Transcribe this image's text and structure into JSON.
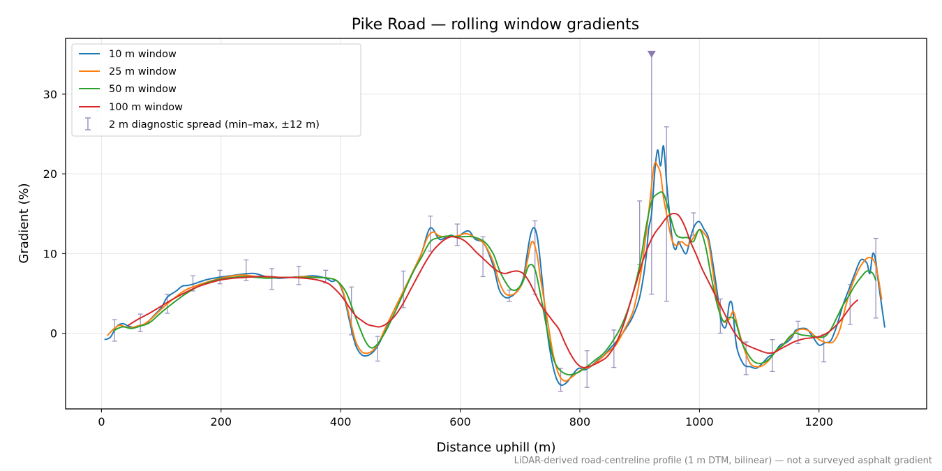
{
  "chart_data": {
    "type": "line",
    "title": "Pike Road — rolling window gradients",
    "xlabel": "Distance uphill (m)",
    "ylabel": "Gradient (%)",
    "xlim": [
      -60,
      1380
    ],
    "ylim": [
      -9.5,
      37
    ],
    "xticks": [
      0,
      200,
      400,
      600,
      800,
      1000,
      1200
    ],
    "yticks": [
      0,
      10,
      20,
      30
    ],
    "grid": true,
    "legend_position": "upper-left",
    "footnote": "LiDAR-derived road-centreline profile (1 m DTM, bilinear) — not a surveyed asphalt gradient",
    "colors": {
      "10 m window": "#1f77b4",
      "25 m window": "#ff7f0e",
      "50 m window": "#2ca02c",
      "100 m window": "#d62728",
      "errorbars": "#9a93bd",
      "marker": "#8b7bb0",
      "grid": "#e6e6e6"
    },
    "series": [
      {
        "name": "10 m window",
        "x": [
          5,
          15,
          25,
          35,
          45,
          55,
          65,
          75,
          85,
          100,
          110,
          125,
          135,
          145,
          155,
          175,
          195,
          215,
          235,
          255,
          275,
          295,
          315,
          335,
          355,
          375,
          385,
          395,
          405,
          415,
          425,
          435,
          445,
          455,
          465,
          475,
          490,
          505,
          520,
          535,
          545,
          550,
          555,
          565,
          575,
          585,
          595,
          605,
          615,
          625,
          640,
          655,
          665,
          675,
          685,
          695,
          705,
          712,
          718,
          724,
          730,
          738,
          745,
          752,
          760,
          768,
          778,
          788,
          798,
          808,
          818,
          828,
          840,
          852,
          864,
          876,
          888,
          900,
          910,
          915,
          920,
          925,
          930,
          935,
          940,
          945,
          950,
          955,
          960,
          965,
          970,
          978,
          985,
          992,
          1000,
          1008,
          1015,
          1022,
          1030,
          1035,
          1040,
          1045,
          1050,
          1055,
          1060,
          1065,
          1075,
          1085,
          1095,
          1105,
          1115,
          1125,
          1135,
          1145,
          1155,
          1160,
          1165,
          1170,
          1180,
          1190,
          1200,
          1210,
          1220,
          1230,
          1240,
          1250,
          1260,
          1270,
          1280,
          1285,
          1290,
          1295,
          1300,
          1310
        ],
        "y": [
          -0.8,
          -0.5,
          0.8,
          1.2,
          0.9,
          0.7,
          0.9,
          1.2,
          2.0,
          3.2,
          4.5,
          5.3,
          5.9,
          6.0,
          6.2,
          6.7,
          7.0,
          7.2,
          7.4,
          7.5,
          7.1,
          6.9,
          7.0,
          7.1,
          7.2,
          6.9,
          6.5,
          6.5,
          4.8,
          1.5,
          -1.5,
          -2.7,
          -2.8,
          -2.3,
          -1.2,
          0.5,
          3.0,
          5.2,
          7.5,
          10.0,
          12.5,
          13.2,
          13.0,
          11.8,
          12.0,
          12.3,
          12.0,
          12.6,
          12.8,
          11.8,
          11.2,
          8.5,
          5.5,
          4.5,
          4.6,
          5.3,
          6.8,
          10.0,
          12.5,
          13.2,
          11.5,
          6.0,
          0.5,
          -3.0,
          -5.5,
          -6.5,
          -6.2,
          -5.2,
          -4.4,
          -4.6,
          -4.2,
          -3.5,
          -2.8,
          -1.8,
          -0.8,
          0.5,
          2.0,
          4.5,
          9.0,
          13.0,
          15.0,
          20.0,
          23.0,
          21.0,
          23.5,
          19.0,
          15.0,
          11.5,
          10.5,
          11.5,
          10.8,
          10.0,
          12.0,
          13.5,
          14.0,
          13.0,
          12.0,
          9.0,
          5.0,
          2.0,
          0.8,
          1.0,
          3.7,
          3.5,
          -0.5,
          -2.5,
          -4.0,
          -4.2,
          -4.4,
          -3.8,
          -3.0,
          -2.5,
          -1.5,
          -1.2,
          -0.5,
          0.3,
          0.5,
          0.6,
          0.5,
          -0.5,
          -1.5,
          -1.2,
          -0.9,
          1.0,
          3.5,
          5.5,
          7.5,
          9.2,
          8.8,
          7.5,
          10.0,
          9.0,
          6.0,
          0.7
        ]
      },
      {
        "name": "25 m window",
        "x": [
          10,
          20,
          30,
          40,
          50,
          60,
          70,
          80,
          100,
          120,
          140,
          160,
          180,
          200,
          220,
          240,
          260,
          280,
          300,
          320,
          340,
          360,
          380,
          395,
          405,
          415,
          425,
          435,
          445,
          455,
          465,
          475,
          490,
          505,
          520,
          535,
          545,
          555,
          565,
          580,
          595,
          610,
          625,
          640,
          655,
          665,
          675,
          685,
          695,
          705,
          712,
          720,
          728,
          735,
          745,
          755,
          765,
          775,
          785,
          795,
          805,
          815,
          830,
          845,
          860,
          875,
          890,
          902,
          910,
          915,
          920,
          925,
          930,
          935,
          940,
          945,
          950,
          955,
          962,
          970,
          980,
          990,
          1000,
          1008,
          1015,
          1022,
          1030,
          1040,
          1050,
          1057,
          1065,
          1075,
          1085,
          1095,
          1105,
          1115,
          1125,
          1135,
          1145,
          1155,
          1165,
          1175,
          1185,
          1195,
          1205,
          1215,
          1225,
          1235,
          1245,
          1255,
          1265,
          1275,
          1285,
          1295,
          1305
        ],
        "y": [
          -0.3,
          0.5,
          1.0,
          0.8,
          0.7,
          0.9,
          1.1,
          1.6,
          3.0,
          4.3,
          5.4,
          6.0,
          6.5,
          6.9,
          7.2,
          7.3,
          7.1,
          7.0,
          7.0,
          7.0,
          7.1,
          7.0,
          6.9,
          6.5,
          5.0,
          2.0,
          -1.0,
          -2.3,
          -2.5,
          -2.1,
          -1.0,
          0.7,
          3.0,
          5.3,
          7.6,
          10.0,
          12.0,
          12.7,
          12.2,
          12.1,
          12.2,
          12.5,
          12.0,
          11.2,
          9.0,
          6.5,
          5.0,
          4.8,
          5.2,
          6.5,
          9.0,
          11.5,
          10.0,
          6.5,
          2.0,
          -2.5,
          -5.2,
          -6.0,
          -5.6,
          -5.0,
          -4.5,
          -4.3,
          -3.5,
          -2.5,
          -1.5,
          0.5,
          3.0,
          7.5,
          12.0,
          15.0,
          18.5,
          21.3,
          21.0,
          20.0,
          17.0,
          15.0,
          13.0,
          11.5,
          11.0,
          11.5,
          11.0,
          12.0,
          13.0,
          12.5,
          11.5,
          8.0,
          4.0,
          1.5,
          1.8,
          2.7,
          0.5,
          -2.0,
          -3.8,
          -4.2,
          -4.1,
          -3.5,
          -2.5,
          -1.8,
          -1.0,
          -0.3,
          0.4,
          0.5,
          0.2,
          -0.5,
          -1.0,
          -1.2,
          -1.0,
          0.5,
          3.5,
          6.0,
          7.8,
          9.0,
          9.5,
          8.5,
          4.2
        ]
      },
      {
        "name": "50 m window",
        "x": [
          20,
          35,
          50,
          65,
          80,
          100,
          120,
          140,
          160,
          180,
          200,
          220,
          240,
          260,
          280,
          300,
          320,
          340,
          360,
          380,
          395,
          410,
          425,
          440,
          450,
          460,
          475,
          490,
          505,
          520,
          535,
          550,
          565,
          580,
          600,
          620,
          640,
          655,
          665,
          675,
          685,
          695,
          705,
          715,
          725,
          735,
          745,
          755,
          765,
          780,
          795,
          810,
          825,
          840,
          855,
          870,
          885,
          900,
          910,
          920,
          930,
          940,
          950,
          960,
          970,
          980,
          990,
          1000,
          1010,
          1020,
          1030,
          1040,
          1050,
          1060,
          1070,
          1080,
          1090,
          1100,
          1110,
          1120,
          1130,
          1140,
          1150,
          1160,
          1170,
          1180,
          1190,
          1200,
          1210,
          1220,
          1230,
          1240,
          1250,
          1260,
          1270,
          1280,
          1290,
          1295
        ],
        "y": [
          0.3,
          0.8,
          0.6,
          0.9,
          1.3,
          2.6,
          3.8,
          4.9,
          5.8,
          6.4,
          6.8,
          7.0,
          7.1,
          7.0,
          6.9,
          7.0,
          7.0,
          7.0,
          7.0,
          6.9,
          6.5,
          5.0,
          2.0,
          -0.8,
          -1.8,
          -1.5,
          0.2,
          2.5,
          5.0,
          7.5,
          9.5,
          11.5,
          12.0,
          12.2,
          12.1,
          12.1,
          11.5,
          10.0,
          8.0,
          6.5,
          5.5,
          5.5,
          6.5,
          8.5,
          8.0,
          4.5,
          0.5,
          -3.0,
          -4.5,
          -5.2,
          -5.0,
          -4.3,
          -3.4,
          -2.5,
          -1.0,
          1.0,
          4.0,
          8.5,
          13.0,
          16.5,
          17.5,
          17.5,
          15.0,
          12.5,
          12.0,
          12.0,
          11.5,
          13.0,
          11.0,
          7.0,
          3.5,
          1.5,
          2.0,
          1.5,
          -1.0,
          -2.5,
          -3.5,
          -3.8,
          -3.6,
          -3.0,
          -2.0,
          -1.5,
          -0.5,
          0.0,
          -0.2,
          -0.3,
          -0.4,
          -0.5,
          -0.4,
          0.5,
          2.0,
          3.5,
          4.7,
          6.0,
          7.0,
          7.8,
          7.5,
          6.6
        ]
      },
      {
        "name": "100 m window",
        "x": [
          45,
          60,
          80,
          100,
          120,
          140,
          160,
          180,
          200,
          220,
          240,
          260,
          280,
          300,
          320,
          340,
          360,
          380,
          395,
          405,
          415,
          425,
          435,
          445,
          455,
          465,
          475,
          485,
          495,
          505,
          515,
          525,
          535,
          545,
          555,
          565,
          575,
          585,
          595,
          605,
          615,
          625,
          635,
          645,
          655,
          665,
          675,
          685,
          695,
          705,
          715,
          725,
          735,
          745,
          755,
          765,
          775,
          785,
          795,
          805,
          815,
          825,
          835,
          845,
          855,
          865,
          875,
          885,
          895,
          905,
          915,
          925,
          935,
          945,
          955,
          965,
          975,
          985,
          995,
          1005,
          1015,
          1025,
          1035,
          1045,
          1055,
          1065,
          1075,
          1085,
          1095,
          1105,
          1115,
          1125,
          1135,
          1145,
          1155,
          1165,
          1175,
          1185,
          1195,
          1205,
          1215,
          1225,
          1235,
          1245,
          1255,
          1265
        ],
        "y": [
          1.0,
          1.7,
          2.5,
          3.4,
          4.3,
          5.1,
          5.8,
          6.3,
          6.7,
          6.9,
          7.0,
          7.1,
          7.1,
          7.0,
          7.0,
          6.9,
          6.7,
          6.2,
          5.2,
          4.3,
          3.2,
          2.2,
          1.6,
          1.1,
          0.9,
          0.8,
          1.1,
          1.7,
          2.6,
          3.8,
          5.2,
          6.6,
          8.0,
          9.3,
          10.4,
          11.2,
          11.8,
          12.1,
          12.0,
          11.7,
          11.1,
          10.3,
          9.6,
          8.9,
          8.2,
          7.7,
          7.5,
          7.7,
          7.8,
          7.5,
          6.5,
          5.0,
          3.5,
          2.5,
          1.5,
          0.5,
          -1.2,
          -2.7,
          -3.8,
          -4.3,
          -4.2,
          -3.9,
          -3.5,
          -3.0,
          -2.0,
          -0.5,
          1.5,
          4.0,
          6.5,
          9.0,
          11.0,
          12.5,
          13.5,
          14.5,
          15.0,
          14.8,
          13.5,
          11.5,
          9.8,
          8.0,
          6.5,
          5.0,
          3.5,
          2.0,
          0.5,
          -0.6,
          -1.3,
          -1.7,
          -2.0,
          -2.3,
          -2.5,
          -2.4,
          -2.0,
          -1.6,
          -1.2,
          -0.9,
          -0.7,
          -0.6,
          -0.5,
          -0.3,
          0.1,
          0.7,
          1.5,
          2.5,
          3.5,
          4.2
        ]
      }
    ],
    "errorbar_series": {
      "name": "2 m diagnostic spread (min–max, ±12 m)",
      "points": [
        {
          "x": 22,
          "lo": -1.0,
          "hi": 1.7
        },
        {
          "x": 65,
          "lo": 0.2,
          "hi": 2.4
        },
        {
          "x": 110,
          "lo": 2.5,
          "hi": 4.9
        },
        {
          "x": 153,
          "lo": 5.3,
          "hi": 7.2
        },
        {
          "x": 198,
          "lo": 6.2,
          "hi": 7.9
        },
        {
          "x": 242,
          "lo": 6.6,
          "hi": 9.2
        },
        {
          "x": 285,
          "lo": 5.5,
          "hi": 8.1
        },
        {
          "x": 330,
          "lo": 6.1,
          "hi": 8.4
        },
        {
          "x": 375,
          "lo": 6.3,
          "hi": 7.9
        },
        {
          "x": 418,
          "lo": -0.2,
          "hi": 5.8
        },
        {
          "x": 462,
          "lo": -3.5,
          "hi": -0.4
        },
        {
          "x": 505,
          "lo": 3.2,
          "hi": 7.8
        },
        {
          "x": 550,
          "lo": 10.3,
          "hi": 14.7
        },
        {
          "x": 595,
          "lo": 11.0,
          "hi": 13.7
        },
        {
          "x": 638,
          "lo": 7.1,
          "hi": 12.1
        },
        {
          "x": 682,
          "lo": 4.0,
          "hi": 5.4
        },
        {
          "x": 725,
          "lo": 4.9,
          "hi": 14.1
        },
        {
          "x": 768,
          "lo": -7.3,
          "hi": -4.4
        },
        {
          "x": 812,
          "lo": -6.8,
          "hi": -2.2
        },
        {
          "x": 857,
          "lo": -4.3,
          "hi": 0.4
        },
        {
          "x": 900,
          "lo": 8.6,
          "hi": 16.6
        },
        {
          "x": 920,
          "lo": 4.9,
          "hi": 35.0,
          "hi_marker": true
        },
        {
          "x": 945,
          "lo": 4.0,
          "hi": 25.9
        },
        {
          "x": 990,
          "lo": 12.3,
          "hi": 15.1
        },
        {
          "x": 1035,
          "lo": 0.0,
          "hi": 4.3
        },
        {
          "x": 1078,
          "lo": -5.2,
          "hi": -1.1
        },
        {
          "x": 1122,
          "lo": -4.8,
          "hi": -0.8
        },
        {
          "x": 1165,
          "lo": -1.3,
          "hi": 1.5
        },
        {
          "x": 1208,
          "lo": -3.6,
          "hi": -0.2
        },
        {
          "x": 1252,
          "lo": 1.1,
          "hi": 6.1
        },
        {
          "x": 1295,
          "lo": 1.9,
          "hi": 11.9
        }
      ]
    }
  }
}
